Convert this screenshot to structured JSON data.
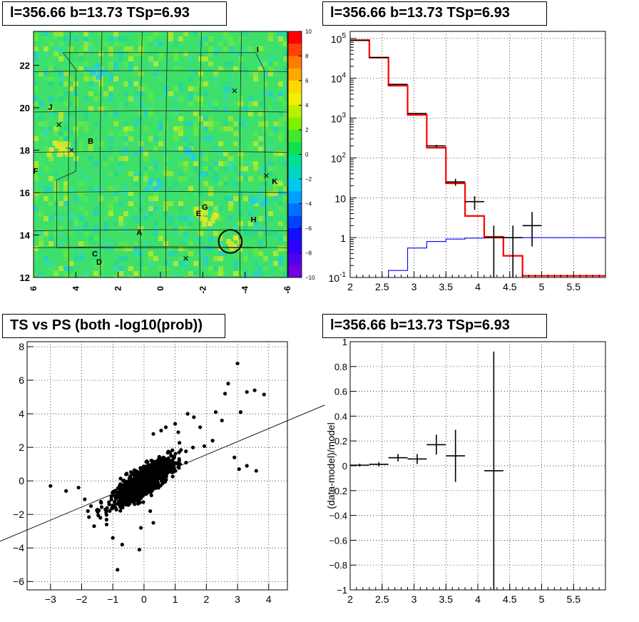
{
  "titles": {
    "skymap": "l=356.66 b=13.73 TSp=6.93",
    "spectrum": "l=356.66 b=13.73 TSp=6.93",
    "scatter": "TS vs PS (both -log10(prob))",
    "residual": "l=356.66 b=13.73 TSp=6.93"
  },
  "chart_data": [
    {
      "type": "heatmap",
      "name": "skymap",
      "xlim": [
        6,
        -6
      ],
      "ylim": [
        12,
        23.6
      ],
      "x_ticks": [
        "6",
        "4",
        "2",
        "0",
        "-2",
        "-4",
        "-6"
      ],
      "y_ticks": [
        "12",
        "14",
        "16",
        "18",
        "20",
        "22"
      ],
      "colorbar": {
        "range": [
          -10,
          10
        ],
        "ticks": [
          "10",
          "8",
          "6",
          "4",
          "2",
          "0",
          "−2",
          "−4",
          "−6",
          "−8",
          "−10"
        ]
      },
      "sources": [
        {
          "label": "A",
          "x": 1.0,
          "y": 14.0
        },
        {
          "label": "B",
          "x": 3.3,
          "y": 18.3
        },
        {
          "label": "C",
          "x": 3.1,
          "y": 13.0
        },
        {
          "label": "D",
          "x": 2.9,
          "y": 12.6
        },
        {
          "label": "E",
          "x": -1.8,
          "y": 14.9
        },
        {
          "label": "F",
          "x": 5.9,
          "y": 16.9
        },
        {
          "label": "G",
          "x": -2.1,
          "y": 15.2
        },
        {
          "label": "H",
          "x": -4.4,
          "y": 14.6
        },
        {
          "label": "I",
          "x": -4.6,
          "y": 22.6
        },
        {
          "label": "J",
          "x": 5.2,
          "y": 19.9
        },
        {
          "label": "K",
          "x": -5.4,
          "y": 16.4
        }
      ],
      "markers": [
        {
          "x": 4.8,
          "y": 19.2
        },
        {
          "x": 4.2,
          "y": 18.0
        },
        {
          "x": -1.2,
          "y": 12.9
        },
        {
          "x": -3.5,
          "y": 20.8
        },
        {
          "x": -5.0,
          "y": 16.8
        }
      ],
      "circle": {
        "x": -3.3,
        "y": 13.7,
        "r": 0.55
      }
    },
    {
      "type": "line",
      "name": "spectrum",
      "log_y": true,
      "xlim": [
        2,
        6
      ],
      "ylim": [
        0.1,
        150000
      ],
      "x_ticks": [
        "2",
        "2.5",
        "3",
        "3.5",
        "4",
        "4.5",
        "5",
        "5.5"
      ],
      "y_ticks": [
        "10^-1",
        "1",
        "10",
        "10^2",
        "10^3",
        "10^4",
        "10^5"
      ],
      "grid": true,
      "series": [
        {
          "color": "#ff0000",
          "bin_edges": [
            2.0,
            2.3,
            2.6,
            2.9,
            3.2,
            3.5,
            3.8,
            4.1,
            4.4,
            4.7,
            5.0,
            6.0
          ],
          "values": [
            90000,
            33000,
            6500,
            1200,
            180,
            23,
            3.5,
            1.05,
            0.35,
            0.11,
            0.11
          ]
        },
        {
          "color": "#0000ff",
          "bin_edges": [
            2.6,
            2.9,
            3.2,
            3.5,
            3.8,
            4.1,
            4.4,
            4.7,
            5.0,
            6.0
          ],
          "values": [
            0.15,
            0.55,
            0.8,
            0.92,
            0.97,
            1.0,
            1.0,
            1.0,
            1.0
          ]
        }
      ],
      "data_points": [
        {
          "x": 2.15,
          "y": 90000,
          "xerr": 0.15,
          "ylo": 89700,
          "yhi": 90300
        },
        {
          "x": 2.45,
          "y": 33000,
          "xerr": 0.15,
          "ylo": 32800,
          "yhi": 33200
        },
        {
          "x": 2.75,
          "y": 7000,
          "xerr": 0.15,
          "ylo": 6900,
          "yhi": 7100
        },
        {
          "x": 3.05,
          "y": 1300,
          "xerr": 0.15,
          "ylo": 1260,
          "yhi": 1340
        },
        {
          "x": 3.35,
          "y": 200,
          "xerr": 0.15,
          "ylo": 186,
          "yhi": 214
        },
        {
          "x": 3.65,
          "y": 25,
          "xerr": 0.15,
          "ylo": 20,
          "yhi": 30
        },
        {
          "x": 3.95,
          "y": 8,
          "xerr": 0.15,
          "ylo": 5,
          "yhi": 11
        },
        {
          "x": 4.25,
          "y": 1,
          "xerr": 0.15,
          "ylo": 0.1,
          "yhi": 2.0
        },
        {
          "x": 4.55,
          "y": 1,
          "xerr": 0.15,
          "ylo": 0.1,
          "yhi": 2.0
        },
        {
          "x": 4.85,
          "y": 2,
          "xerr": 0.15,
          "ylo": 0.6,
          "yhi": 4.4
        }
      ]
    },
    {
      "type": "scatter",
      "name": "scatter",
      "xlim": [
        -3.75,
        4.6
      ],
      "ylim": [
        -6.5,
        8.3
      ],
      "x_ticks": [
        "−3",
        "−2",
        "−1",
        "0",
        "1",
        "2",
        "3",
        "4"
      ],
      "y_ticks": [
        "−6",
        "−4",
        "−2",
        "0",
        "2",
        "4",
        "6",
        "8"
      ],
      "grid": true,
      "fit_line": {
        "slope": 1.0,
        "intercept": 0.0
      },
      "outliers": [
        [
          3.0,
          7.0
        ],
        [
          3.3,
          5.3
        ],
        [
          3.55,
          5.4
        ],
        [
          3.85,
          5.15
        ],
        [
          2.7,
          5.8
        ],
        [
          2.6,
          5.2
        ],
        [
          3.1,
          4.1
        ],
        [
          2.3,
          4.1
        ],
        [
          2.5,
          3.6
        ],
        [
          1.6,
          3.8
        ],
        [
          1.4,
          4.0
        ],
        [
          1.0,
          3.4
        ],
        [
          0.7,
          3.2
        ],
        [
          1.8,
          3.2
        ],
        [
          2.2,
          2.4
        ],
        [
          3.3,
          0.9
        ],
        [
          3.6,
          0.6
        ],
        [
          3.05,
          0.7
        ],
        [
          2.9,
          1.4
        ],
        [
          -3.0,
          -0.3
        ],
        [
          -2.5,
          -0.6
        ],
        [
          -2.1,
          -0.4
        ],
        [
          -1.9,
          -1.1
        ],
        [
          -1.7,
          -1.5
        ],
        [
          -1.8,
          -1.8
        ],
        [
          -1.4,
          -2.2
        ],
        [
          -1.6,
          -2.7
        ],
        [
          -1.2,
          -2.6
        ],
        [
          -1.0,
          -3.4
        ],
        [
          -0.7,
          -3.8
        ],
        [
          -0.85,
          -5.3
        ],
        [
          -0.15,
          -4.1
        ],
        [
          -0.1,
          -2.8
        ],
        [
          0.3,
          2.8
        ],
        [
          0.55,
          3.0
        ],
        [
          1.1,
          2.9
        ],
        [
          0.3,
          -2.5
        ],
        [
          0.2,
          -1.8
        ]
      ]
    },
    {
      "type": "scatter",
      "name": "residual",
      "ylabel": "(data-model)/model",
      "xlim": [
        2,
        6
      ],
      "ylim": [
        -1,
        1
      ],
      "x_ticks": [
        "2",
        "2.5",
        "3",
        "3.5",
        "4",
        "4.5",
        "5",
        "5.5"
      ],
      "y_ticks": [
        "1",
        "0.8",
        "0.6",
        "0.4",
        "0.2",
        "0",
        "−0.2",
        "−0.4",
        "−0.6",
        "−0.8",
        "−1"
      ],
      "grid": true,
      "data_points": [
        {
          "x": 2.15,
          "y": 0.005,
          "xerr": 0.15,
          "yerr": 0.012
        },
        {
          "x": 2.45,
          "y": 0.012,
          "xerr": 0.15,
          "yerr": 0.018
        },
        {
          "x": 2.75,
          "y": 0.065,
          "xerr": 0.15,
          "yerr": 0.03
        },
        {
          "x": 3.05,
          "y": 0.055,
          "xerr": 0.15,
          "yerr": 0.04
        },
        {
          "x": 3.35,
          "y": 0.17,
          "xerr": 0.15,
          "yerr": 0.08
        },
        {
          "x": 3.65,
          "y": 0.08,
          "xerr": 0.15,
          "yerr": 0.21
        },
        {
          "x": 4.25,
          "y": -0.04,
          "xerr": 0.15,
          "yerr": 0.96
        }
      ]
    }
  ]
}
